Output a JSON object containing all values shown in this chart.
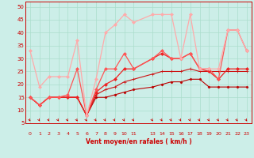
{
  "xlabel": "Vent moyen/en rafales ( km/h )",
  "xlim": [
    -0.5,
    23.5
  ],
  "ylim": [
    5,
    52
  ],
  "yticks": [
    5,
    10,
    15,
    20,
    25,
    30,
    35,
    40,
    45,
    50
  ],
  "xticks": [
    0,
    1,
    2,
    3,
    4,
    5,
    6,
    7,
    8,
    9,
    10,
    11,
    13,
    14,
    15,
    16,
    17,
    18,
    19,
    20,
    21,
    22,
    23
  ],
  "xtick_labels": [
    "0",
    "1",
    "2",
    "3",
    "4",
    "5",
    "6",
    "7",
    "8",
    "9",
    "10",
    "11",
    "13",
    "14",
    "15",
    "16",
    "17",
    "18",
    "19",
    "20",
    "21",
    "22",
    "23"
  ],
  "background_color": "#cceee8",
  "grid_color": "#aaddcc",
  "series": [
    {
      "x": [
        0,
        1,
        2,
        3,
        4,
        5,
        6,
        7,
        8,
        9,
        10,
        11,
        13,
        14,
        15,
        16,
        17,
        18,
        19,
        20,
        21,
        22,
        23
      ],
      "y": [
        15,
        12,
        15,
        15,
        15,
        15,
        8,
        15,
        15,
        16,
        17,
        18,
        19,
        20,
        21,
        21,
        22,
        22,
        19,
        19,
        19,
        19,
        19
      ],
      "color": "#bb0000",
      "marker": "D",
      "markersize": 1.5,
      "linewidth": 0.8
    },
    {
      "x": [
        0,
        1,
        2,
        3,
        4,
        5,
        6,
        7,
        8,
        9,
        10,
        11,
        13,
        14,
        15,
        16,
        17,
        18,
        19,
        20,
        21,
        22,
        23
      ],
      "y": [
        15,
        12,
        15,
        15,
        15,
        15,
        8,
        16,
        18,
        19,
        21,
        22,
        24,
        25,
        25,
        25,
        26,
        25,
        25,
        25,
        25,
        25,
        25
      ],
      "color": "#cc1111",
      "marker": "+",
      "markersize": 2.5,
      "linewidth": 0.8
    },
    {
      "x": [
        0,
        1,
        2,
        3,
        4,
        5,
        6,
        7,
        8,
        9,
        10,
        11,
        13,
        14,
        15,
        16,
        17,
        18,
        19,
        20,
        21,
        22,
        23
      ],
      "y": [
        15,
        12,
        15,
        15,
        15,
        15,
        8,
        17,
        20,
        22,
        26,
        26,
        30,
        32,
        30,
        30,
        32,
        26,
        25,
        22,
        26,
        26,
        26
      ],
      "color": "#ee2222",
      "marker": "D",
      "markersize": 2,
      "linewidth": 0.9
    },
    {
      "x": [
        0,
        1,
        2,
        3,
        4,
        5,
        6,
        7,
        8,
        9,
        10,
        11,
        13,
        14,
        15,
        16,
        17,
        18,
        19,
        20,
        21,
        22,
        23
      ],
      "y": [
        15,
        12,
        15,
        15,
        16,
        26,
        8,
        18,
        26,
        26,
        32,
        26,
        30,
        33,
        30,
        30,
        32,
        26,
        26,
        22,
        41,
        41,
        33
      ],
      "color": "#ff5555",
      "marker": "D",
      "markersize": 2,
      "linewidth": 0.9
    },
    {
      "x": [
        0,
        1,
        2,
        3,
        4,
        5,
        6,
        7,
        8,
        9,
        10,
        11,
        13,
        14,
        15,
        16,
        17,
        18,
        19,
        20,
        21,
        22,
        23
      ],
      "y": [
        33,
        19,
        23,
        23,
        23,
        37,
        8,
        22,
        40,
        43,
        47,
        44,
        47,
        47,
        47,
        30,
        47,
        26,
        26,
        26,
        41,
        41,
        33
      ],
      "color": "#ffaaaa",
      "marker": "D",
      "markersize": 2,
      "linewidth": 0.9
    }
  ]
}
